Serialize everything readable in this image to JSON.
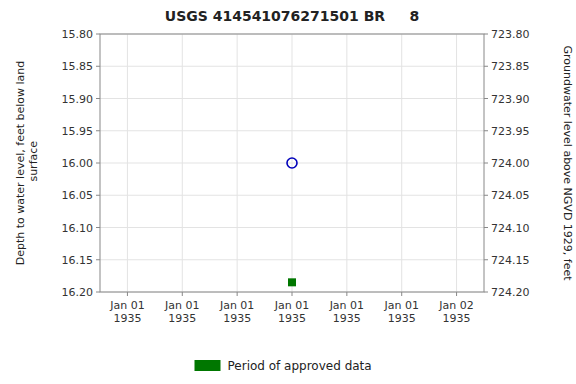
{
  "chart_data": {
    "type": "scatter",
    "title": "USGS 414541076271501 BR     8",
    "ylabel": "Depth to water level, feet below land\n surface",
    "y2label": "Groundwater level above NGVD 1929, feet",
    "categories": [
      "Jan 01\n1935",
      "Jan 01\n1935",
      "Jan 01\n1935",
      "Jan 01\n1935",
      "Jan 01\n1935",
      "Jan 01\n1935",
      "Jan 02\n1935"
    ],
    "series": [
      {
        "color": "#0000bb",
        "marker": "open-circle",
        "values": [
          null,
          null,
          null,
          16.0,
          null,
          null,
          null
        ]
      },
      {
        "name": "Period of approved data",
        "color": "#007700",
        "marker": "square",
        "values": [
          null,
          null,
          null,
          16.185,
          null,
          null,
          null
        ]
      }
    ],
    "ylim": [
      16.2,
      15.8
    ],
    "yticks": [
      {
        "value": 15.8,
        "label": "15.80"
      },
      15.85,
      {
        "value": 15.9,
        "label": "15.90"
      },
      15.95,
      {
        "value": 16.0,
        "label": "16.00"
      },
      16.05,
      {
        "value": 16.1,
        "label": "16.10"
      },
      16.15,
      {
        "value": 16.2,
        "label": "16.20"
      }
    ],
    "y2lim": [
      724.2,
      723.8
    ],
    "y2ticks": [
      {
        "value": 724.2,
        "label": "724.20"
      },
      724.15,
      {
        "value": 724.1,
        "label": "724.10"
      },
      724.05,
      {
        "value": 724.0,
        "label": "724.00"
      },
      723.95,
      {
        "value": 723.9,
        "label": "723.90"
      },
      723.85,
      {
        "value": 723.8,
        "label": "723.80"
      }
    ],
    "grid": true,
    "legend": "bottom"
  }
}
